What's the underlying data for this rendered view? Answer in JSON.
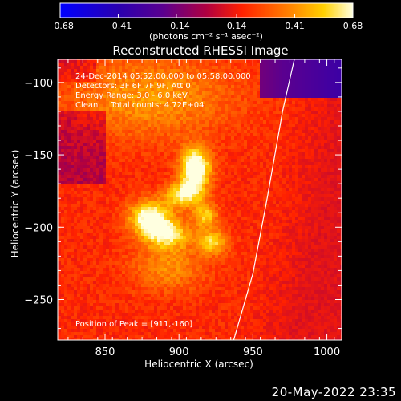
{
  "chart_data": {
    "type": "heatmap",
    "title": "Reconstructed RHESSI Image",
    "xlabel": "Heliocentric X (arcsec)",
    "ylabel": "Heliocentric Y (arcsec)",
    "xlim": [
      818,
      1010
    ],
    "ylim": [
      -278,
      -84
    ],
    "xticks": [
      850,
      900,
      950,
      1000
    ],
    "yticks": [
      -100,
      -150,
      -200,
      -250
    ],
    "colorbar": {
      "label": "(photons cm⁻² s⁻¹ asec⁻²)",
      "range": [
        -0.68,
        0.68
      ],
      "ticks": [
        "-0.68",
        "-0.41",
        "-0.14",
        "0.14",
        "0.41",
        "0.68"
      ]
    },
    "annotations": [
      "24-Dec-2014 05:52:00.000 to 05:58:00.000",
      "Detectors: 3F 6F 7F 9F, Att 0",
      "Energy Range: 3.0 - 6.0 keV",
      "Clean     Total counts: 4.72E+04"
    ],
    "peak_label": "Position of Peak = [911,-160]",
    "sources": [
      {
        "x": 911,
        "y": -160,
        "sx": 7,
        "sy": 10,
        "amp": 0.7
      },
      {
        "x": 903,
        "y": -178,
        "sx": 9,
        "sy": 6,
        "amp": 0.45
      },
      {
        "x": 880,
        "y": -193,
        "sx": 10,
        "sy": 8,
        "amp": 0.55
      },
      {
        "x": 892,
        "y": -205,
        "sx": 11,
        "sy": 7,
        "amp": 0.45
      },
      {
        "x": 918,
        "y": -192,
        "sx": 6,
        "sy": 6,
        "amp": 0.35
      },
      {
        "x": 923,
        "y": -210,
        "sx": 7,
        "sy": 6,
        "amp": 0.38
      },
      {
        "x": 893,
        "y": -228,
        "sx": 18,
        "sy": 12,
        "amp": 0.22
      },
      {
        "x": 880,
        "y": -110,
        "sx": 40,
        "sy": 20,
        "amp": 0.25
      }
    ],
    "background": 0.18,
    "limb": [
      [
        937,
        -278
      ],
      [
        950,
        -232
      ],
      [
        960,
        -178
      ],
      [
        970,
        -120
      ],
      [
        978,
        -84
      ]
    ]
  },
  "timestamp": "20-May-2022 23:35",
  "colors": {
    "background": "#000000",
    "text": "#ffffff",
    "limb": "#ffffff"
  }
}
